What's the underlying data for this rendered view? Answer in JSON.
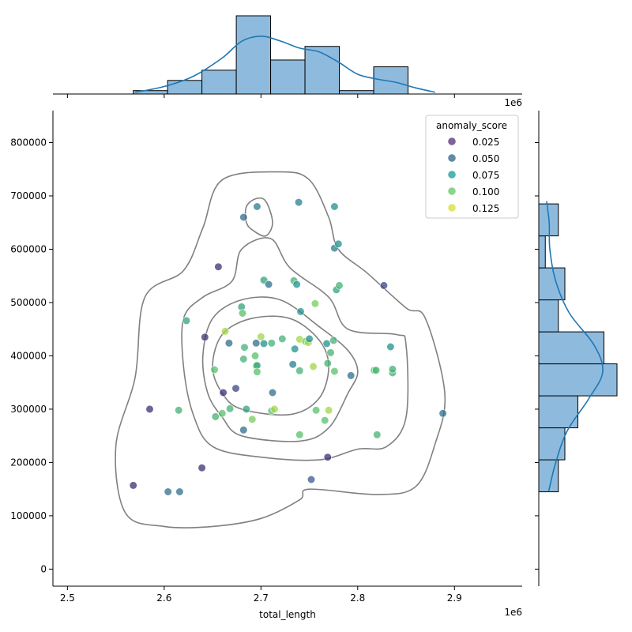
{
  "chart_data": {
    "type": "scatter",
    "title": "",
    "xlabel": "total_length",
    "ylabel": "",
    "x_offset_label": "1e6",
    "top_offset_label": "1e6",
    "xlim": [
      2.485,
      2.97
    ],
    "ylim": [
      -32000,
      860000
    ],
    "x_ticks": [
      2.5,
      2.6,
      2.7,
      2.8,
      2.9
    ],
    "x_tick_labels": [
      "2.5",
      "2.6",
      "2.7",
      "2.8",
      "2.9"
    ],
    "y_ticks": [
      0,
      100000,
      200000,
      300000,
      400000,
      500000,
      600000,
      700000,
      800000
    ],
    "y_tick_labels": [
      "0",
      "100000",
      "200000",
      "300000",
      "400000",
      "500000",
      "600000",
      "700000",
      "800000"
    ],
    "grid": false,
    "legend": {
      "title": "anomaly_score",
      "placement": "top-right",
      "entries": [
        {
          "label": "0.025",
          "color": "#5c3b86"
        },
        {
          "label": "0.050",
          "color": "#3b6b8f"
        },
        {
          "label": "0.075",
          "color": "#23a39a"
        },
        {
          "label": "0.100",
          "color": "#6dcb6f"
        },
        {
          "label": "0.125",
          "color": "#d6e140"
        }
      ]
    },
    "colormap": [
      "#440154",
      "#3b528b",
      "#21918c",
      "#5ec962",
      "#fde725"
    ],
    "score_range": [
      0.0,
      0.14
    ],
    "points": [
      [
        2.568,
        157000,
        0.02
      ],
      [
        2.585,
        300000,
        0.02
      ],
      [
        2.604,
        145000,
        0.05
      ],
      [
        2.616,
        145000,
        0.05
      ],
      [
        2.615,
        298000,
        0.09
      ],
      [
        2.623,
        466000,
        0.08
      ],
      [
        2.639,
        190000,
        0.02
      ],
      [
        2.642,
        435000,
        0.02
      ],
      [
        2.652,
        374000,
        0.1
      ],
      [
        2.653,
        286000,
        0.09
      ],
      [
        2.656,
        567000,
        0.02
      ],
      [
        2.66,
        292000,
        0.1
      ],
      [
        2.661,
        331000,
        0.02
      ],
      [
        2.663,
        446000,
        0.12
      ],
      [
        2.667,
        424000,
        0.05
      ],
      [
        2.668,
        301000,
        0.09
      ],
      [
        2.674,
        339000,
        0.03
      ],
      [
        2.68,
        492000,
        0.08
      ],
      [
        2.681,
        480000,
        0.1
      ],
      [
        2.682,
        261000,
        0.05
      ],
      [
        2.682,
        394000,
        0.09
      ],
      [
        2.683,
        416000,
        0.09
      ],
      [
        2.682,
        660000,
        0.05
      ],
      [
        2.685,
        300000,
        0.08
      ],
      [
        2.691,
        281000,
        0.11
      ],
      [
        2.694,
        400000,
        0.1
      ],
      [
        2.695,
        424000,
        0.05
      ],
      [
        2.695,
        381000,
        0.11
      ],
      [
        2.696,
        382000,
        0.08
      ],
      [
        2.696,
        370000,
        0.1
      ],
      [
        2.696,
        680000,
        0.06
      ],
      [
        2.7,
        436000,
        0.12
      ],
      [
        2.703,
        423000,
        0.07
      ],
      [
        2.703,
        542000,
        0.08
      ],
      [
        2.708,
        534000,
        0.05
      ],
      [
        2.711,
        424000,
        0.09
      ],
      [
        2.711,
        297000,
        0.1
      ],
      [
        2.712,
        331000,
        0.05
      ],
      [
        2.714,
        300000,
        0.12
      ],
      [
        2.722,
        432000,
        0.09
      ],
      [
        2.733,
        384000,
        0.06
      ],
      [
        2.734,
        541000,
        0.09
      ],
      [
        2.735,
        413000,
        0.07
      ],
      [
        2.737,
        534000,
        0.07
      ],
      [
        2.739,
        688000,
        0.06
      ],
      [
        2.74,
        372000,
        0.09
      ],
      [
        2.74,
        431000,
        0.12
      ],
      [
        2.74,
        252000,
        0.1
      ],
      [
        2.741,
        483000,
        0.07
      ],
      [
        2.746,
        427000,
        0.11
      ],
      [
        2.749,
        425000,
        0.12
      ],
      [
        2.75,
        432000,
        0.07
      ],
      [
        2.752,
        168000,
        0.04
      ],
      [
        2.754,
        380000,
        0.12
      ],
      [
        2.756,
        498000,
        0.11
      ],
      [
        2.757,
        298000,
        0.1
      ],
      [
        2.766,
        279000,
        0.1
      ],
      [
        2.768,
        423000,
        0.07
      ],
      [
        2.769,
        210000,
        0.02
      ],
      [
        2.769,
        386000,
        0.09
      ],
      [
        2.77,
        298000,
        0.12
      ],
      [
        2.772,
        406000,
        0.09
      ],
      [
        2.775,
        429000,
        0.09
      ],
      [
        2.776,
        371000,
        0.1
      ],
      [
        2.776,
        680000,
        0.07
      ],
      [
        2.776,
        602000,
        0.06
      ],
      [
        2.778,
        524000,
        0.08
      ],
      [
        2.78,
        610000,
        0.07
      ],
      [
        2.781,
        532000,
        0.09
      ],
      [
        2.793,
        363000,
        0.05
      ],
      [
        2.817,
        373000,
        0.1
      ],
      [
        2.819,
        373000,
        0.09
      ],
      [
        2.82,
        252000,
        0.09
      ],
      [
        2.827,
        532000,
        0.03
      ],
      [
        2.834,
        417000,
        0.07
      ],
      [
        2.836,
        368000,
        0.09
      ],
      [
        2.836,
        375000,
        0.09
      ],
      [
        2.888,
        292000,
        0.05
      ]
    ],
    "top_histogram": {
      "bins": [
        2.568,
        2.6035,
        2.639,
        2.6745,
        2.71,
        2.7455,
        2.781,
        2.8165,
        2.852,
        2.8875
      ],
      "counts": [
        1,
        4,
        7,
        23,
        10,
        14,
        1,
        8,
        0
      ],
      "kde": [
        [
          2.57,
          0.5
        ],
        [
          2.6,
          2.2
        ],
        [
          2.63,
          5.2
        ],
        [
          2.66,
          10.6
        ],
        [
          2.68,
          15.5
        ],
        [
          2.7,
          17.0
        ],
        [
          2.72,
          15.6
        ],
        [
          2.74,
          13.5
        ],
        [
          2.76,
          12.4
        ],
        [
          2.78,
          9.4
        ],
        [
          2.8,
          5.8
        ],
        [
          2.82,
          4.4
        ],
        [
          2.84,
          3.4
        ],
        [
          2.86,
          1.8
        ],
        [
          2.88,
          0.5
        ]
      ]
    },
    "right_histogram": {
      "bins": [
        145000,
        205000,
        265000,
        325000,
        385000,
        445000,
        505000,
        565000,
        625000,
        685000
      ],
      "counts": [
        3,
        4,
        6,
        12,
        10,
        3,
        4,
        1,
        3
      ],
      "kde": [
        [
          145000,
          1.5
        ],
        [
          200000,
          2.6
        ],
        [
          260000,
          4.4
        ],
        [
          320000,
          7.7
        ],
        [
          370000,
          9.8
        ],
        [
          420000,
          8.5
        ],
        [
          480000,
          4.7
        ],
        [
          540000,
          2.6
        ],
        [
          600000,
          1.7
        ],
        [
          650000,
          1.6
        ],
        [
          690000,
          1.2
        ]
      ]
    },
    "density_contours": [
      [
        [
          2.65,
          80000
        ],
        [
          2.7,
          95000
        ],
        [
          2.74,
          130000
        ],
        [
          2.75,
          150000
        ],
        [
          2.82,
          140000
        ],
        [
          2.86,
          155000
        ],
        [
          2.88,
          235000
        ],
        [
          2.89,
          330000
        ],
        [
          2.87,
          470000
        ],
        [
          2.85,
          490000
        ],
        [
          2.81,
          555000
        ],
        [
          2.78,
          600000
        ],
        [
          2.77,
          660000
        ],
        [
          2.75,
          730000
        ],
        [
          2.72,
          745000
        ],
        [
          2.66,
          730000
        ],
        [
          2.64,
          640000
        ],
        [
          2.62,
          560000
        ],
        [
          2.58,
          510000
        ],
        [
          2.57,
          360000
        ],
        [
          2.55,
          230000
        ],
        [
          2.56,
          105000
        ],
        [
          2.6,
          80000
        ]
      ],
      [
        [
          2.7,
          210000
        ],
        [
          2.76,
          205000
        ],
        [
          2.8,
          225000
        ],
        [
          2.83,
          230000
        ],
        [
          2.85,
          285000
        ],
        [
          2.85,
          420000
        ],
        [
          2.84,
          440000
        ],
        [
          2.79,
          450000
        ],
        [
          2.77,
          510000
        ],
        [
          2.73,
          565000
        ],
        [
          2.71,
          620000
        ],
        [
          2.68,
          600000
        ],
        [
          2.67,
          540000
        ],
        [
          2.64,
          510000
        ],
        [
          2.62,
          470000
        ],
        [
          2.62,
          380000
        ],
        [
          2.63,
          290000
        ],
        [
          2.65,
          230000
        ]
      ],
      [
        [
          2.68,
          250000
        ],
        [
          2.74,
          240000
        ],
        [
          2.77,
          265000
        ],
        [
          2.79,
          330000
        ],
        [
          2.8,
          370000
        ],
        [
          2.79,
          410000
        ],
        [
          2.76,
          455000
        ],
        [
          2.72,
          505000
        ],
        [
          2.68,
          505000
        ],
        [
          2.65,
          470000
        ],
        [
          2.64,
          400000
        ],
        [
          2.645,
          330000
        ],
        [
          2.66,
          285000
        ]
      ],
      [
        [
          2.68,
          300000
        ],
        [
          2.73,
          290000
        ],
        [
          2.76,
          320000
        ],
        [
          2.77,
          380000
        ],
        [
          2.76,
          430000
        ],
        [
          2.73,
          470000
        ],
        [
          2.69,
          470000
        ],
        [
          2.66,
          440000
        ],
        [
          2.65,
          380000
        ],
        [
          2.66,
          330000
        ]
      ],
      [
        [
          2.692,
          635000
        ],
        [
          2.705,
          625000
        ],
        [
          2.712,
          650000
        ],
        [
          2.705,
          690000
        ],
        [
          2.695,
          695000
        ],
        [
          2.685,
          680000
        ],
        [
          2.685,
          650000
        ]
      ]
    ]
  }
}
